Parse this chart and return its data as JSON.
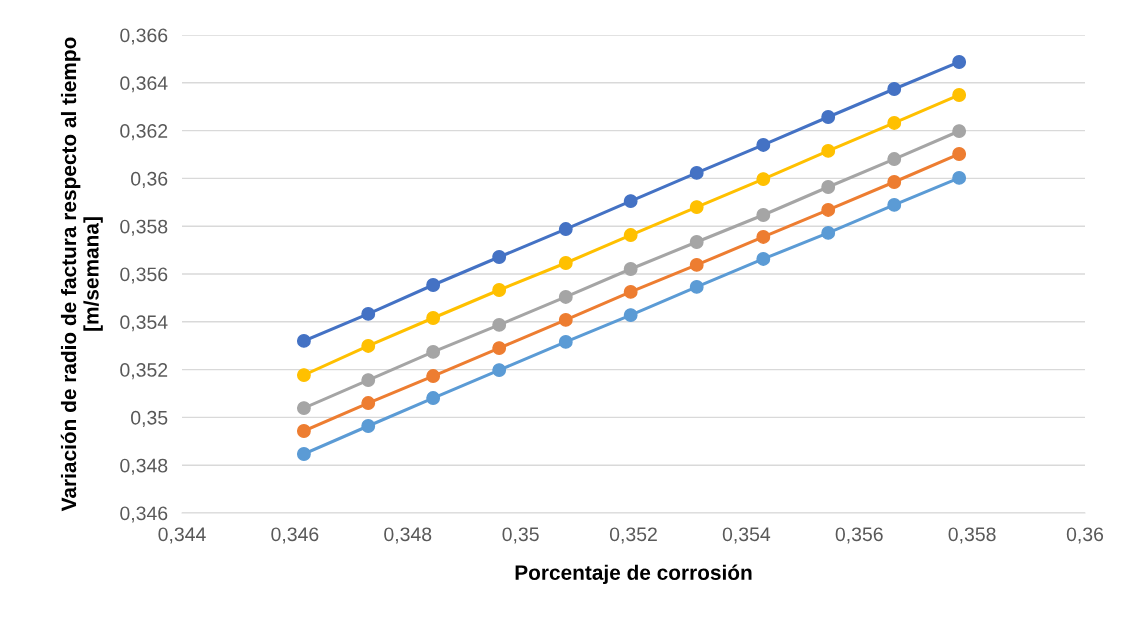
{
  "chart_data": {
    "type": "line",
    "xlabel": "Porcentaje de corrosión",
    "ylabel": "Variación de radio de factura respecto al tiempo [m/semana]",
    "x": [
      0.34616,
      0.3473,
      0.34845,
      0.34962,
      0.3508,
      0.35195,
      0.35312,
      0.3543,
      0.35545,
      0.35662,
      0.35777
    ],
    "series": [
      {
        "color": "#4472c4",
        "values": [
          0.3532,
          0.35433,
          0.35554,
          0.35671,
          0.35788,
          0.35905,
          0.36023,
          0.3614,
          0.36257,
          0.36374,
          0.36487
        ]
      },
      {
        "color": "#ffc000",
        "values": [
          0.35177,
          0.35299,
          0.35416,
          0.35533,
          0.35646,
          0.35763,
          0.3588,
          0.35997,
          0.36115,
          0.36232,
          0.36349
        ]
      },
      {
        "color": "#a5a5a5",
        "values": [
          0.35039,
          0.35156,
          0.35274,
          0.35387,
          0.35504,
          0.35621,
          0.35734,
          0.35847,
          0.35964,
          0.36081,
          0.36198
        ]
      },
      {
        "color": "#ed7d31",
        "values": [
          0.34943,
          0.3506,
          0.35173,
          0.3529,
          0.35408,
          0.35525,
          0.35638,
          0.35755,
          0.35868,
          0.35985,
          0.36102
        ]
      },
      {
        "color": "#5b9bd5",
        "values": [
          0.34847,
          0.34964,
          0.35081,
          0.35198,
          0.35316,
          0.35428,
          0.35546,
          0.35663,
          0.35772,
          0.35889,
          0.36002
        ]
      }
    ],
    "xlim": [
      0.344,
      0.36
    ],
    "xticks": [
      {
        "value": 0.344,
        "label": "0,344"
      },
      {
        "value": 0.346,
        "label": "0,346"
      },
      {
        "value": 0.348,
        "label": "0,348"
      },
      {
        "value": 0.35,
        "label": "0,35"
      },
      {
        "value": 0.352,
        "label": "0,352"
      },
      {
        "value": 0.354,
        "label": "0,354"
      },
      {
        "value": 0.356,
        "label": "0,356"
      },
      {
        "value": 0.358,
        "label": "0,358"
      },
      {
        "value": 0.36,
        "label": "0,36"
      }
    ],
    "ylim": [
      0.346,
      0.366
    ],
    "yticks": [
      {
        "value": 0.346,
        "label": "0,346"
      },
      {
        "value": 0.348,
        "label": "0,348"
      },
      {
        "value": 0.35,
        "label": "0,35"
      },
      {
        "value": 0.352,
        "label": "0,352"
      },
      {
        "value": 0.354,
        "label": "0,354"
      },
      {
        "value": 0.356,
        "label": "0,356"
      },
      {
        "value": 0.358,
        "label": "0,358"
      },
      {
        "value": 0.36,
        "label": "0,36"
      },
      {
        "value": 0.362,
        "label": "0,362"
      },
      {
        "value": 0.364,
        "label": "0,364"
      },
      {
        "value": 0.366,
        "label": "0,366"
      }
    ],
    "grid": "y",
    "marker": "circle",
    "line_style": "solid"
  }
}
